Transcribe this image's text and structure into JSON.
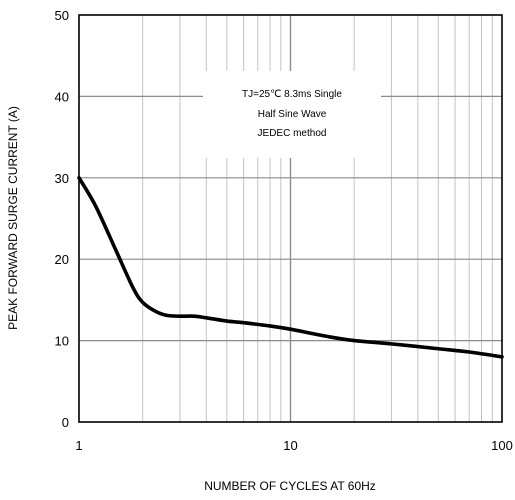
{
  "chart_data": {
    "type": "line",
    "title": "",
    "xlabel": "NUMBER OF CYCLES AT 60Hz",
    "ylabel": "PEAK FORWARD SURGE CURRENT (A)",
    "x_scale": "log",
    "xlim": [
      1,
      100
    ],
    "ylim": [
      0,
      50
    ],
    "x_ticks": [
      "1",
      "10",
      "100"
    ],
    "y_ticks": [
      "0",
      "10",
      "20",
      "30",
      "40",
      "50"
    ],
    "grid": true,
    "annotation": [
      "TJ=25℃ 8.3ms Single",
      "Half  Sine Wave",
      "JEDEC method"
    ],
    "series": [
      {
        "x": [
          1,
          1.2,
          1.5,
          1.8,
          2,
          2.3,
          2.6,
          3,
          3.5,
          4,
          5,
          6,
          8,
          10,
          15,
          20,
          30,
          50,
          70,
          100
        ],
        "y": [
          30,
          26.5,
          21,
          16.5,
          14.7,
          13.6,
          13.1,
          13,
          13,
          12.8,
          12.4,
          12.2,
          11.8,
          11.4,
          10.5,
          10,
          9.6,
          9,
          8.6,
          8
        ],
        "color": "#000000"
      }
    ]
  }
}
